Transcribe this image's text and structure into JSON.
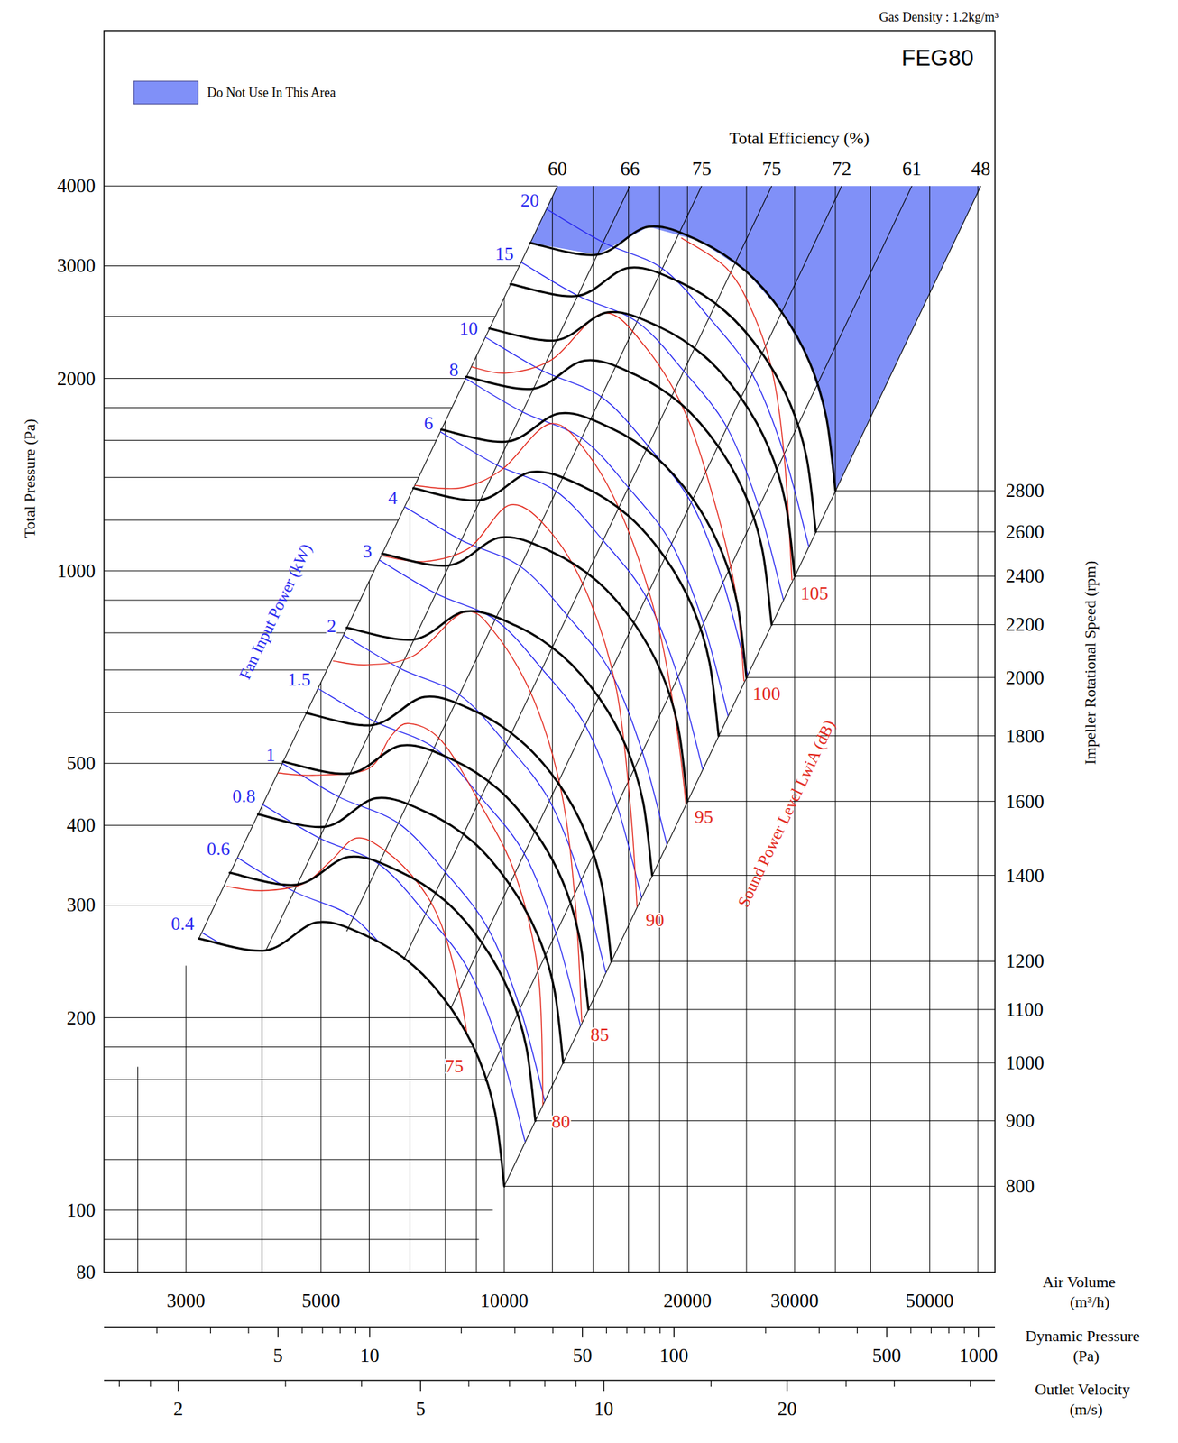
{
  "chart_data": {
    "type": "line",
    "title": "FEG80",
    "subtitle": "Gas Density : 1.2kg/m³",
    "log": true,
    "grid": true,
    "legend": "top-left",
    "x_label": "Air Volume",
    "x_unit": "(m³/h)",
    "y_label": "Total Pressure (Pa)",
    "y2_label": "Impeller Rotational Speed (rpm)",
    "xlim": [
      2200,
      64000
    ],
    "ylim": [
      80,
      7000
    ],
    "xticks": [
      3000,
      5000,
      10000,
      20000,
      30000,
      50000
    ],
    "yticks": [
      80,
      100,
      200,
      300,
      400,
      500,
      1000,
      2000,
      3000,
      4000
    ],
    "x_grid": [
      2500,
      3000,
      4000,
      5000,
      6000,
      7000,
      8000,
      9000,
      10000,
      12000,
      14000,
      16000,
      18000,
      20000,
      25000,
      30000,
      35000,
      40000,
      50000,
      60000
    ],
    "y_grid": [
      90,
      100,
      120,
      140,
      160,
      180,
      200,
      300,
      400,
      500,
      600,
      700,
      800,
      900,
      1000,
      1200,
      1400,
      1600,
      1800,
      2000,
      2500,
      3000,
      4000
    ],
    "series": [
      {
        "name": "800",
        "color": "#000000",
        "x": [
          3150,
          4060,
          4930,
          5970,
          7100,
          8170,
          9070,
          9660,
          10000
        ],
        "values": [
          266,
          255,
          282,
          268,
          241,
          207,
          173,
          142,
          109
        ]
      },
      {
        "name": "900",
        "color": "#000000",
        "x": [
          3540,
          4570,
          5550,
          6720,
          7990,
          9190,
          10200,
          10870,
          11250
        ],
        "values": [
          337,
          323,
          357,
          339,
          305,
          262,
          219,
          180,
          138
        ]
      },
      {
        "name": "1000",
        "color": "#000000",
        "x": [
          3940,
          5080,
          6160,
          7460,
          8880,
          10210,
          11340,
          12080,
          12500
        ],
        "values": [
          416,
          398,
          441,
          419,
          377,
          323,
          270,
          222,
          170
        ]
      },
      {
        "name": "1100",
        "color": "#000000",
        "x": [
          4330,
          5580,
          6780,
          8210,
          9760,
          11230,
          12470,
          13280,
          13750
        ],
        "values": [
          503,
          482,
          533,
          507,
          456,
          391,
          327,
          268,
          206
        ]
      },
      {
        "name": "1200",
        "color": "#000000",
        "x": [
          4730,
          6090,
          7400,
          8960,
          10650,
          12260,
          13610,
          14490,
          15000
        ],
        "values": [
          599,
          574,
          635,
          603,
          542,
          466,
          389,
          320,
          245
        ]
      },
      {
        "name": "1400",
        "color": "#000000",
        "x": [
          5510,
          7110,
          8630,
          10450,
          12430,
          14300,
          15870,
          16910,
          17500
        ],
        "values": [
          815,
          781,
          864,
          821,
          738,
          634,
          530,
          435,
          334
        ]
      },
      {
        "name": "1600",
        "color": "#000000",
        "x": [
          6300,
          8120,
          9860,
          11940,
          14200,
          16340,
          18140,
          19320,
          20000
        ],
        "values": [
          1064,
          1020,
          1128,
          1072,
          964,
          828,
          692,
          568,
          436
        ]
      },
      {
        "name": "1800",
        "color": "#000000",
        "x": [
          7090,
          9140,
          11090,
          13430,
          15980,
          18380,
          20410,
          21740,
          22500
        ],
        "values": [
          1347,
          1291,
          1428,
          1357,
          1220,
          1048,
          876,
          719,
          552
        ]
      },
      {
        "name": "2000",
        "color": "#000000",
        "x": [
          7880,
          10150,
          12330,
          14930,
          17750,
          20430,
          22680,
          24150,
          25000
        ],
        "values": [
          1663,
          1594,
          1763,
          1675,
          1506,
          1294,
          1081,
          888,
          681
        ]
      },
      {
        "name": "2200",
        "color": "#000000",
        "x": [
          8660,
          11170,
          13560,
          16420,
          19530,
          22470,
          24940,
          26570,
          27500
        ],
        "values": [
          2012,
          1928,
          2133,
          2027,
          1823,
          1565,
          1308,
          1074,
          824
        ]
      },
      {
        "name": "2400",
        "color": "#000000",
        "x": [
          9450,
          12180,
          14790,
          17910,
          21300,
          24510,
          27210,
          28980,
          30000
        ],
        "values": [
          2394,
          2295,
          2538,
          2412,
          2169,
          1863,
          1557,
          1278,
          981
        ]
      },
      {
        "name": "2600",
        "color": "#000000",
        "x": [
          10240,
          13200,
          16020,
          19400,
          23080,
          26550,
          29480,
          31400,
          32500
        ],
        "values": [
          2810,
          2693,
          2979,
          2831,
          2546,
          2186,
          1827,
          1500,
          1151
        ]
      },
      {
        "name": "2800",
        "color": "#000000",
        "x": [
          11030,
          14210,
          17260,
          20900,
          24850,
          28600,
          31750,
          33810,
          35000
        ],
        "values": [
          3259,
          3124,
          3455,
          3283,
          2952,
          2536,
          2119,
          1740,
          1335
        ]
      }
    ],
    "power_label": "Fan Input Power (kW)",
    "power_lines": [
      {
        "name": "0.4",
        "color": "#2a2af0",
        "x": [
          3180,
          3940
        ],
        "values": [
          272,
          241
        ]
      },
      {
        "name": "0.6",
        "color": "#2a2af0",
        "x": [
          3640,
          4520,
          5650,
          6750
        ],
        "values": [
          356,
          315,
          287,
          240
        ]
      },
      {
        "name": "0.8",
        "color": "#2a2af0",
        "x": [
          4010,
          4970,
          6220,
          7430,
          8750,
          9860,
          10820
        ],
        "values": [
          431,
          382,
          348,
          291,
          237,
          178,
          128
        ]
      },
      {
        "name": "1",
        "color": "#2a2af0",
        "x": [
          4320,
          5350,
          6700,
          8000,
          9420,
          10620,
          11660
        ],
        "values": [
          500,
          443,
          403,
          338,
          275,
          207,
          148
        ]
      },
      {
        "name": "1.5",
        "color": "#2a2af0",
        "x": [
          4940,
          6130,
          7670,
          9160,
          10790,
          12160,
          13350
        ],
        "values": [
          655,
          581,
          529,
          442,
          361,
          271,
          194
        ]
      },
      {
        "name": "2",
        "color": "#2a2af0",
        "x": [
          5440,
          6740,
          8440,
          10080,
          11870,
          13380,
          14690
        ],
        "values": [
          794,
          704,
          640,
          536,
          437,
          328,
          235
        ]
      },
      {
        "name": "3",
        "color": "#2a2af0",
        "x": [
          6230,
          7720,
          9660,
          11540,
          13590,
          15320,
          16820
        ],
        "values": [
          1040,
          922,
          839,
          702,
          573,
          430,
          308
        ]
      },
      {
        "name": "4",
        "color": "#2a2af0",
        "x": [
          6860,
          8500,
          10630,
          12700,
          14960,
          16860,
          18510
        ],
        "values": [
          1260,
          1117,
          1016,
          851,
          694,
          521,
          373
        ]
      },
      {
        "name": "6",
        "color": "#2a2af0",
        "x": [
          7850,
          9730,
          12170,
          14540,
          17120,
          19300,
          21190
        ],
        "values": [
          1651,
          1464,
          1332,
          1115,
          909,
          683,
          489
        ]
      },
      {
        "name": "8",
        "color": "#2a2af0",
        "x": [
          8640,
          10710,
          13400,
          16000,
          18840,
          21240,
          23320
        ],
        "values": [
          2000,
          1773,
          1613,
          1350,
          1101,
          828,
          593
        ]
      },
      {
        "name": "10",
        "color": "#2a2af0",
        "x": [
          9300,
          11530,
          14430,
          17240,
          20300,
          22880,
          25120
        ],
        "values": [
          2321,
          2058,
          1872,
          1567,
          1278,
          960,
          688
        ]
      },
      {
        "name": "15",
        "color": "#2a2af0",
        "x": [
          10650,
          13200,
          16520,
          19730,
          23240,
          26190,
          28750
        ],
        "values": [
          3041,
          2696,
          2453,
          2053,
          1674,
          1258,
          901
        ]
      },
      {
        "name": "20",
        "color": "#2a2af0",
        "x": [
          11720,
          14530,
          18180,
          21720,
          25570,
          28820,
          31650
        ],
        "values": [
          3684,
          3266,
          2972,
          2488,
          2028,
          1525,
          1092
        ]
      }
    ],
    "sound_label": "Sound Power Level LwiA (dB)",
    "sound_lines": [
      {
        "name": "75",
        "color": "#e32a1e",
        "x": [
          3500,
          4000,
          4670,
          5190,
          5720,
          6400,
          7230,
          7890,
          8460,
          8850
        ],
        "values": [
          321,
          316,
          324,
          352,
          382,
          364,
          324,
          279,
          218,
          167
        ]
      },
      {
        "name": "80",
        "color": "#e32a1e",
        "x": [
          4240,
          4840,
          5970,
          6510,
          6980,
          7890,
          9070,
          10430,
          11380,
          11580
        ],
        "values": [
          483,
          479,
          490,
          551,
          577,
          542,
          437,
          335,
          233,
          144
        ]
      },
      {
        "name": "85",
        "color": "#e32a1e",
        "x": [
          5230,
          5970,
          7100,
          8600,
          9720,
          11180,
          12410,
          13080,
          13410
        ],
        "values": [
          723,
          713,
          737,
          862,
          793,
          629,
          452,
          303,
          197
        ]
      },
      {
        "name": "90",
        "color": "#e32a1e",
        "x": [
          6240,
          7360,
          8760,
          10250,
          11990,
          13790,
          15300,
          16130,
          16530
        ],
        "values": [
          1058,
          1034,
          1086,
          1269,
          1142,
          905,
          650,
          423,
          298
        ]
      },
      {
        "name": "95",
        "color": "#e32a1e",
        "x": [
          7100,
          8460,
          9900,
          11910,
          13790,
          15850,
          17910,
          19200,
          19890
        ],
        "values": [
          1361,
          1348,
          1439,
          1699,
          1513,
          1180,
          820,
          569,
          432
        ]
      },
      {
        "name": "100",
        "color": "#e32a1e",
        "x": [
          8820,
          10070,
          11990,
          14530,
          16990,
          19890,
          22470,
          24090,
          24770
        ],
        "values": [
          2086,
          2039,
          2142,
          2529,
          2251,
          1756,
          1220,
          905,
          672
        ]
      },
      {
        "name": "105",
        "color": "#e32a1e",
        "x": [
          19540,
          23260,
          25830,
          27700,
          28880,
          29700
        ],
        "values": [
          3318,
          2965,
          2487,
          2005,
          1488,
          967
        ]
      }
    ],
    "efficiency_label": "Total Efficiency (%)",
    "efficiency_lines": [
      {
        "name": "60",
        "x": [
          3150,
          12230
        ],
        "values": [
          266,
          4000
        ]
      },
      {
        "name": "66",
        "x": [
          4060,
          16090
        ],
        "values": [
          255,
          4000
        ]
      },
      {
        "name": "75",
        "x": [
          5510,
          21100
        ],
        "values": [
          273,
          4000
        ]
      },
      {
        "name": "75",
        "x": [
          6830,
          27510
        ],
        "values": [
          246,
          4000
        ]
      },
      {
        "name": "72",
        "x": [
          8170,
          35840
        ],
        "values": [
          207,
          4000
        ]
      },
      {
        "name": "61",
        "x": [
          9310,
          46740
        ],
        "values": [
          159,
          4000
        ]
      },
      {
        "name": "48",
        "x": [
          10000,
          60670
        ],
        "values": [
          109,
          4000
        ]
      }
    ],
    "forbidden_area": {
      "name": "Do Not Use In This Area",
      "color": "#8090f8",
      "x": [
        12230,
        60670,
        35000,
        33810,
        31750,
        28600,
        24850,
        20900,
        17260,
        14210,
        11030
      ],
      "values": [
        4000,
        4000,
        1335,
        1740,
        2119,
        2536,
        2952,
        3283,
        3455,
        3124,
        3259
      ]
    },
    "secondary_axes": [
      {
        "label": "Dynamic Pressure",
        "unit": "(Pa)",
        "xlim": [
          1.34,
          1134
        ],
        "xticks": [
          5,
          10,
          50,
          100,
          500,
          1000
        ],
        "minor_ticks": [
          2,
          3,
          4,
          6,
          7,
          8,
          9,
          20,
          30,
          40,
          60,
          70,
          80,
          90,
          200,
          300,
          400,
          600,
          700,
          800,
          900
        ]
      },
      {
        "label": "Outlet Velocity",
        "unit": "(m/s)",
        "xlim": [
          1.51,
          43.9
        ],
        "xticks": [
          2,
          5,
          10,
          20
        ],
        "minor_ticks": [
          1.6,
          1.8,
          3,
          4,
          6,
          7,
          8,
          9,
          15,
          25,
          30,
          40
        ]
      }
    ]
  }
}
